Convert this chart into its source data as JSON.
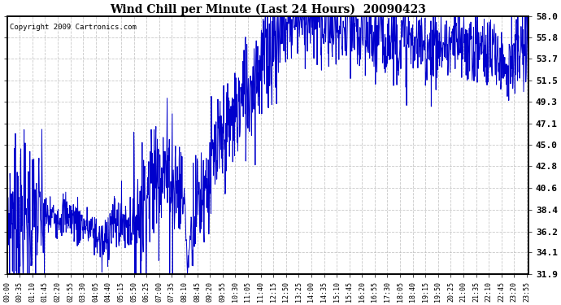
{
  "title": "Wind Chill per Minute (Last 24 Hours)  20090423",
  "copyright": "Copyright 2009 Cartronics.com",
  "line_color": "#0000CC",
  "background_color": "#ffffff",
  "plot_bg_color": "#ffffff",
  "grid_color": "#bbbbbb",
  "ytick_labels": [
    "31.9",
    "34.1",
    "36.2",
    "38.4",
    "40.6",
    "42.8",
    "45.0",
    "47.1",
    "49.3",
    "51.5",
    "53.7",
    "55.8",
    "58.0"
  ],
  "ytick_values": [
    31.9,
    34.1,
    36.2,
    38.4,
    40.6,
    42.8,
    45.0,
    47.1,
    49.3,
    51.5,
    53.7,
    55.8,
    58.0
  ],
  "ymin": 31.9,
  "ymax": 58.0,
  "xtick_labels": [
    "00:00",
    "00:35",
    "01:10",
    "01:45",
    "02:20",
    "02:55",
    "03:30",
    "04:05",
    "04:40",
    "05:15",
    "05:50",
    "06:25",
    "07:00",
    "07:35",
    "08:10",
    "08:45",
    "09:20",
    "09:55",
    "10:30",
    "11:05",
    "11:40",
    "12:15",
    "12:50",
    "13:25",
    "14:00",
    "14:35",
    "15:10",
    "15:45",
    "16:20",
    "16:55",
    "17:30",
    "18:05",
    "18:40",
    "19:15",
    "19:50",
    "20:25",
    "21:00",
    "21:35",
    "22:10",
    "22:45",
    "23:20",
    "23:55"
  ],
  "seed": 7
}
